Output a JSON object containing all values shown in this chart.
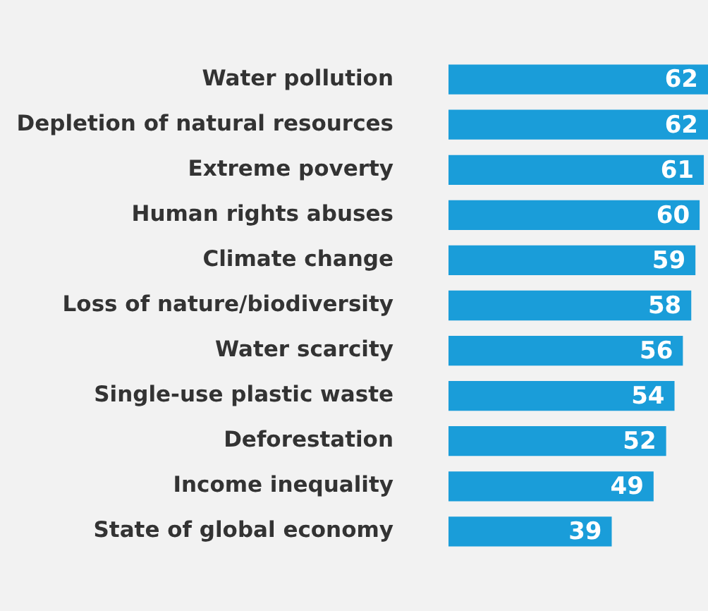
{
  "chart_data": {
    "type": "bar",
    "orientation": "horizontal",
    "categories": [
      "Water pollution",
      "Depletion of natural resources",
      "Extreme poverty",
      "Human rights abuses",
      "Climate change",
      "Loss of nature/biodiversity",
      "Water scarcity",
      "Single-use plastic waste",
      "Deforestation",
      "Income inequality",
      "State of global economy"
    ],
    "values": [
      62,
      62,
      61,
      60,
      59,
      58,
      56,
      54,
      52,
      49,
      39
    ],
    "color": "#1a9dd9",
    "data_labels": true
  }
}
